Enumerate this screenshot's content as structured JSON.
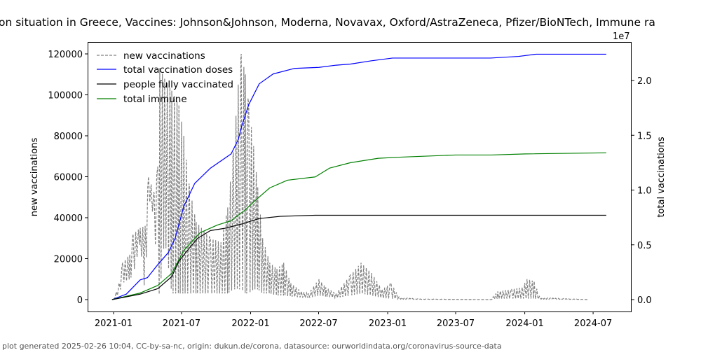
{
  "chart_data": {
    "type": "line",
    "title": "on situation in Greece, Vaccines: Johnson&Johnson, Moderna, Novavax, Oxford/AstraZeneca, Pfizer/BioNTech, Immune ra",
    "xlabel": "",
    "ylabel_left": "new vaccinations",
    "ylabel_right": "total vaccinations",
    "right_axis_multiplier": "1e7",
    "ylim_left": [
      -5000,
      126000
    ],
    "ylim_right": [
      -0.1,
      2.36
    ],
    "x_ticks": [
      "2021-01",
      "2021-07",
      "2022-01",
      "2022-07",
      "2023-01",
      "2023-07",
      "2024-01",
      "2024-07"
    ],
    "y_ticks_left": [
      "0",
      "20000",
      "40000",
      "60000",
      "80000",
      "100000",
      "120000"
    ],
    "y_ticks_right": [
      "0.0",
      "0.5",
      "1.0",
      "1.5",
      "2.0"
    ],
    "legend_position": "top-left",
    "legend": [
      "new vaccinations",
      "total vaccination doses",
      "people fully vaccinated",
      "total immune"
    ],
    "colors": {
      "new": "#808080",
      "total": "#0000ff",
      "full": "#000000",
      "immune": "#008000"
    },
    "new_vaccinations_weekly_peak_low": [
      [
        "2021-01-01",
        0,
        0
      ],
      [
        "2021-01-16",
        8000,
        3000
      ],
      [
        "2021-01-25",
        18000,
        8000
      ],
      [
        "2021-02-13",
        22000,
        10000
      ],
      [
        "2021-02-22",
        32000,
        12000
      ],
      [
        "2021-03-13",
        35000,
        28000
      ],
      [
        "2021-03-26",
        36000,
        2000
      ],
      [
        "2021-04-04",
        60000,
        50000
      ],
      [
        "2021-04-19",
        52000,
        40000
      ],
      [
        "2021-04-29",
        65000,
        2000
      ],
      [
        "2021-05-04",
        113000,
        3000
      ],
      [
        "2021-05-17",
        108000,
        30000
      ],
      [
        "2021-06-05",
        102000,
        3000
      ],
      [
        "2021-06-24",
        95000,
        3000
      ],
      [
        "2021-07-07",
        80000,
        3000
      ],
      [
        "2021-07-22",
        55000,
        3000
      ],
      [
        "2021-08-09",
        38000,
        3000
      ],
      [
        "2021-09-16",
        30000,
        3000
      ],
      [
        "2021-10-14",
        28000,
        3000
      ],
      [
        "2021-11-01",
        45000,
        3000
      ],
      [
        "2021-11-16",
        72000,
        5000
      ],
      [
        "2021-11-29",
        105000,
        5000
      ],
      [
        "2021-12-07",
        120000,
        5000
      ],
      [
        "2021-12-18",
        110000,
        3000
      ],
      [
        "2021-12-27",
        95000,
        3000
      ],
      [
        "2022-01-09",
        75000,
        5000
      ],
      [
        "2022-01-20",
        55000,
        5000
      ],
      [
        "2022-02-02",
        30000,
        3000
      ],
      [
        "2022-02-21",
        18000,
        3000
      ],
      [
        "2022-03-12",
        15000,
        2000
      ],
      [
        "2022-03-30",
        18000,
        2000
      ],
      [
        "2022-04-18",
        8000,
        1500
      ],
      [
        "2022-05-16",
        4000,
        1000
      ],
      [
        "2022-06-04",
        3000,
        800
      ],
      [
        "2022-07-02",
        10000,
        2000
      ],
      [
        "2022-07-20",
        6000,
        1500
      ],
      [
        "2022-08-17",
        3000,
        800
      ],
      [
        "2022-09-24",
        12000,
        2000
      ],
      [
        "2022-10-22",
        18000,
        3000
      ],
      [
        "2022-11-19",
        13000,
        2000
      ],
      [
        "2022-12-17",
        5000,
        800
      ],
      [
        "2023-01-10",
        8000,
        500
      ],
      [
        "2023-02-01",
        1000,
        200
      ],
      [
        "2023-03-29",
        300,
        100
      ],
      [
        "2023-10-02",
        0,
        0
      ],
      [
        "2023-10-21",
        4000,
        500
      ],
      [
        "2023-11-27",
        5000,
        500
      ],
      [
        "2023-12-25",
        6000,
        500
      ],
      [
        "2024-01-07",
        10000,
        500
      ],
      [
        "2024-01-26",
        9000,
        500
      ],
      [
        "2024-02-10",
        1000,
        200
      ],
      [
        "2024-06-19",
        0,
        0
      ]
    ],
    "total_vaccination_doses": [
      [
        "2020-12-28",
        0
      ],
      [
        "2021-02-04",
        0.05
      ],
      [
        "2021-03-13",
        0.18
      ],
      [
        "2021-04-01",
        0.2
      ],
      [
        "2021-04-29",
        0.32
      ],
      [
        "2021-05-27",
        0.43
      ],
      [
        "2021-06-14",
        0.56
      ],
      [
        "2021-07-07",
        0.85
      ],
      [
        "2021-08-05",
        1.06
      ],
      [
        "2021-09-16",
        1.2
      ],
      [
        "2021-11-10",
        1.33
      ],
      [
        "2021-11-29",
        1.46
      ],
      [
        "2021-12-08",
        1.58
      ],
      [
        "2021-12-27",
        1.78
      ],
      [
        "2022-01-24",
        1.97
      ],
      [
        "2022-03-02",
        2.06
      ],
      [
        "2022-04-27",
        2.11
      ],
      [
        "2022-07-02",
        2.12
      ],
      [
        "2022-08-17",
        2.14
      ],
      [
        "2022-09-24",
        2.15
      ],
      [
        "2022-11-19",
        2.18
      ],
      [
        "2023-01-14",
        2.205
      ],
      [
        "2023-10-02",
        2.205
      ],
      [
        "2023-12-16",
        2.22
      ],
      [
        "2024-01-31",
        2.24
      ],
      [
        "2024-08-05",
        2.24
      ]
    ],
    "people_fully_vaccinated": [
      [
        "2020-12-28",
        0
      ],
      [
        "2021-03-13",
        0.05
      ],
      [
        "2021-04-29",
        0.1
      ],
      [
        "2021-06-05",
        0.21
      ],
      [
        "2021-06-24",
        0.35
      ],
      [
        "2021-07-12",
        0.43
      ],
      [
        "2021-08-13",
        0.56
      ],
      [
        "2021-09-16",
        0.63
      ],
      [
        "2021-10-23",
        0.65
      ],
      [
        "2021-12-08",
        0.69
      ],
      [
        "2022-01-24",
        0.74
      ],
      [
        "2022-03-21",
        0.76
      ],
      [
        "2022-06-22",
        0.77
      ],
      [
        "2024-08-05",
        0.77
      ]
    ],
    "total_immune": [
      [
        "2020-12-28",
        0
      ],
      [
        "2021-03-13",
        0.06
      ],
      [
        "2021-04-29",
        0.13
      ],
      [
        "2021-06-05",
        0.24
      ],
      [
        "2021-07-07",
        0.45
      ],
      [
        "2021-08-19",
        0.61
      ],
      [
        "2021-10-04",
        0.68
      ],
      [
        "2021-11-10",
        0.72
      ],
      [
        "2021-12-18",
        0.82
      ],
      [
        "2022-01-15",
        0.91
      ],
      [
        "2022-02-21",
        1.02
      ],
      [
        "2022-04-09",
        1.09
      ],
      [
        "2022-06-22",
        1.12
      ],
      [
        "2022-07-30",
        1.2
      ],
      [
        "2022-09-24",
        1.25
      ],
      [
        "2022-12-07",
        1.29
      ],
      [
        "2023-02-01",
        1.3
      ],
      [
        "2023-06-30",
        1.32
      ],
      [
        "2023-10-02",
        1.32
      ],
      [
        "2024-01-03",
        1.33
      ],
      [
        "2024-08-05",
        1.34
      ]
    ]
  },
  "footer": "plot generated 2025-02-26 10:04, CC-by-sa-nc, origin: dukun.de/corona, datasource: ourworldindata.org/coronavirus-source-data"
}
